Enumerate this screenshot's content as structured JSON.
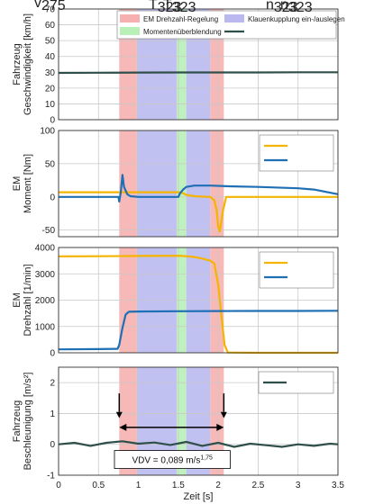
{
  "chart_data": [
    {
      "type": "line",
      "ylabel": [
        "Fahrzeug",
        "Geschwindigkeit [km/h]"
      ],
      "xlim": [
        0,
        3.5
      ],
      "ylim": [
        0,
        70
      ],
      "yticks": [
        0,
        10,
        20,
        30,
        40,
        50,
        60,
        70
      ],
      "grid": true,
      "legend_position": "top",
      "legend": [
        {
          "label": "EM Drehzahl-Regelung",
          "kind": "patch",
          "color": "#f6b0b0"
        },
        {
          "label": "Klauenkupplung ein-/auslegen",
          "kind": "patch",
          "color": "#b9b9f0"
        },
        {
          "label": "Momentenüberblendung",
          "kind": "patch",
          "color": "#b8f0b8"
        },
        {
          "label": "v",
          "sub": "Fahrzeug",
          "kind": "line",
          "color": "#2f4f4a"
        }
      ],
      "series": [
        {
          "name": "vFahrzeug",
          "color": "#2f4f4a",
          "x": [
            0,
            0.5,
            1.0,
            1.5,
            2.0,
            2.5,
            3.0,
            3.5
          ],
          "y": [
            29.6,
            29.7,
            29.8,
            29.9,
            29.9,
            29.9,
            30.0,
            30.0
          ]
        }
      ]
    },
    {
      "type": "line",
      "ylabel": [
        "EM",
        "Moment [Nm]"
      ],
      "xlim": [
        0,
        3.5
      ],
      "ylim": [
        -60,
        100
      ],
      "yticks": [
        -50,
        0,
        50,
        100
      ],
      "grid": true,
      "legend_position": "top-right",
      "legend": [
        {
          "label": "T",
          "sub": "EM1",
          "kind": "line",
          "color": "#f5b400"
        },
        {
          "label": "T",
          "sub": "EM2",
          "kind": "line",
          "color": "#1f6fb4"
        }
      ],
      "series": [
        {
          "name": "TEM1",
          "color": "#f5b400",
          "x": [
            0,
            0.76,
            0.8,
            1.0,
            1.5,
            1.55,
            1.6,
            1.7,
            1.9,
            1.95,
            1.98,
            2.0,
            2.02,
            2.06,
            2.1,
            3.5
          ],
          "y": [
            7,
            7,
            7,
            7,
            7,
            6,
            3,
            1,
            0,
            -5,
            -20,
            -45,
            -52,
            -20,
            0,
            0
          ]
        },
        {
          "name": "TEM2",
          "color": "#1f6fb4",
          "x": [
            0,
            0.75,
            0.76,
            0.78,
            0.8,
            0.82,
            0.86,
            0.9,
            1.0,
            1.5,
            1.52,
            1.56,
            1.6,
            1.7,
            1.9,
            2.1,
            2.5,
            3.0,
            3.2,
            3.5
          ],
          "y": [
            0,
            0,
            -7,
            8,
            33,
            15,
            4,
            1,
            0,
            0,
            5,
            11,
            15,
            17,
            17,
            16,
            15,
            13,
            11,
            4
          ]
        }
      ]
    },
    {
      "type": "line",
      "ylabel": [
        "EM",
        "Drehzahl [1/min]"
      ],
      "xlim": [
        0,
        3.5
      ],
      "ylim": [
        0,
        4000
      ],
      "yticks": [
        0,
        1000,
        2000,
        3000,
        4000
      ],
      "grid": true,
      "legend_position": "top-right",
      "legend": [
        {
          "label": "n",
          "sub": "EM1",
          "kind": "line",
          "color": "#f5b400"
        },
        {
          "label": "n",
          "sub": "EM2",
          "kind": "line",
          "color": "#1f6fb4"
        }
      ],
      "series": [
        {
          "name": "nEM1",
          "color": "#f5b400",
          "x": [
            0,
            0.5,
            1.0,
            1.5,
            1.6,
            1.7,
            1.8,
            1.9,
            1.95,
            2.0,
            2.04,
            2.08,
            2.12,
            2.5,
            3.0,
            3.5
          ],
          "y": [
            3660,
            3670,
            3680,
            3690,
            3670,
            3640,
            3580,
            3500,
            3400,
            2600,
            1400,
            300,
            10,
            0,
            0,
            0
          ]
        },
        {
          "name": "nEM2",
          "color": "#1f6fb4",
          "x": [
            0,
            0.5,
            0.74,
            0.76,
            0.8,
            0.84,
            0.88,
            1.0,
            1.5,
            2.0,
            2.5,
            3.0,
            3.5
          ],
          "y": [
            130,
            140,
            150,
            300,
            950,
            1450,
            1560,
            1570,
            1580,
            1585,
            1590,
            1590,
            1595
          ]
        }
      ]
    },
    {
      "type": "line",
      "ylabel": [
        "Fahrzeug",
        "Beschleunigung [m/s²]"
      ],
      "xlabel": "Zeit [s]",
      "xlim": [
        0,
        3.5
      ],
      "xticks": [
        0,
        0.5,
        1,
        1.5,
        2,
        2.5,
        3,
        3.5
      ],
      "xticklabels": [
        "0",
        "0.5",
        "1",
        "1.5",
        "2",
        "2.5",
        "3",
        "3.5"
      ],
      "ylim": [
        -1,
        2.5
      ],
      "yticks": [
        -1,
        0,
        1,
        2
      ],
      "grid": true,
      "legend_position": "top-right",
      "legend": [
        {
          "label": "a",
          "sub": "Fahrzeug",
          "kind": "line",
          "color": "#2f4f4a"
        }
      ],
      "series": [
        {
          "name": "aFahrzeug",
          "color": "#2f4f4a",
          "x": [
            0,
            0.2,
            0.4,
            0.6,
            0.8,
            1.0,
            1.2,
            1.4,
            1.6,
            1.8,
            2.0,
            2.2,
            2.4,
            2.6,
            2.8,
            3.0,
            3.2,
            3.4,
            3.5
          ],
          "y": [
            0.0,
            0.05,
            -0.05,
            0.05,
            0.1,
            0.02,
            0.06,
            -0.02,
            0.08,
            -0.05,
            0.05,
            -0.08,
            0.02,
            -0.03,
            -0.08,
            0.0,
            -0.05,
            0.02,
            0.0
          ]
        }
      ],
      "annotations": {
        "t_start": {
          "label": "t",
          "sub": "Start",
          "x": 0.76
        },
        "t_end": {
          "label": "t",
          "sub": "Ende",
          "x": 2.07
        },
        "vdv_text": "VDV = 0,089 m/s",
        "vdv_exponent": "1,75"
      }
    }
  ],
  "phases": [
    {
      "name": "EM Drehzahl-Regelung",
      "from": 0.76,
      "to": 0.98,
      "color": "#f6b0b0"
    },
    {
      "name": "Klauenkupplung ein-/auslegen",
      "from": 0.98,
      "to": 1.48,
      "color": "#b9b9f0"
    },
    {
      "name": "Momentenüberblendung",
      "from": 1.48,
      "to": 1.6,
      "color": "#b8f0b8"
    },
    {
      "name": "Klauenkupplung ein-/auslegen",
      "from": 1.6,
      "to": 1.9,
      "color": "#b9b9f0"
    },
    {
      "name": "EM Drehzahl-Regelung",
      "from": 1.9,
      "to": 2.07,
      "color": "#f6b0b0"
    }
  ]
}
